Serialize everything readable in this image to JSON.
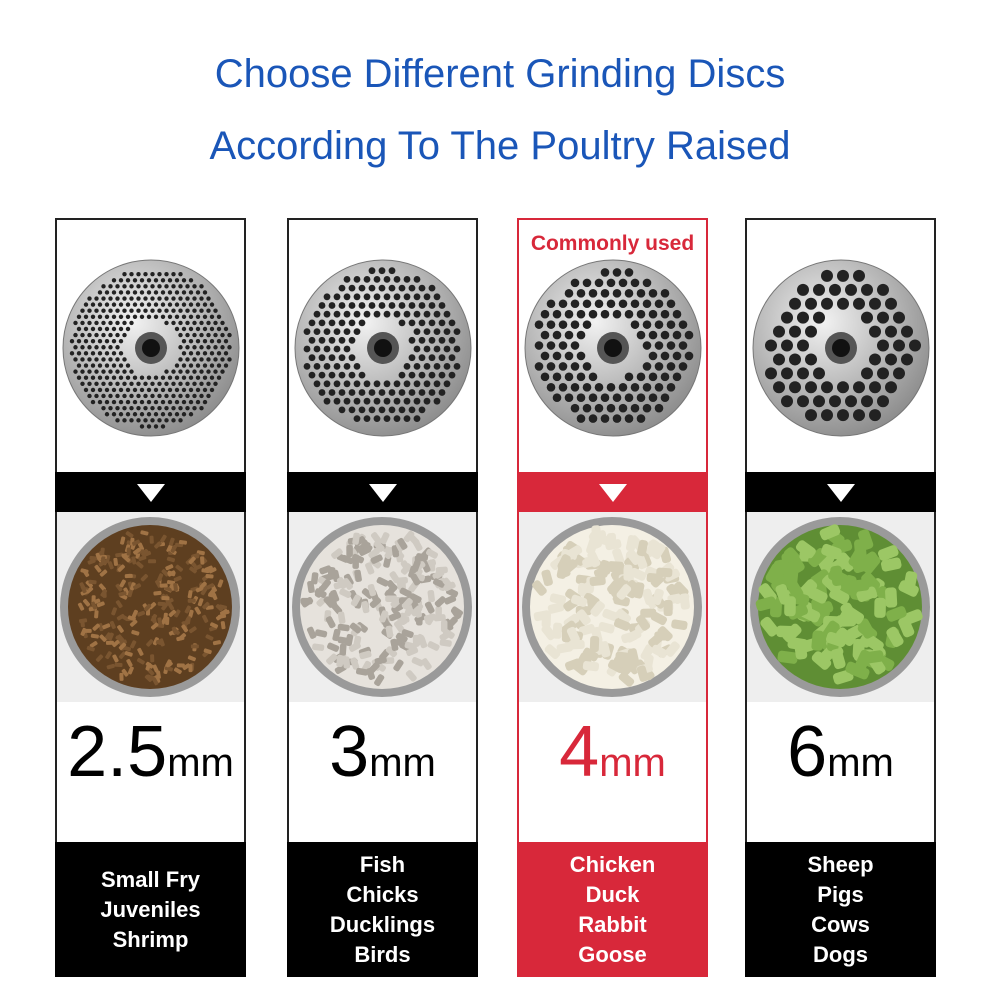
{
  "title": [
    "Choose Different Grinding Discs",
    "According To The Poultry Raised"
  ],
  "columns": [
    {
      "size": "2.5",
      "unit": "mm",
      "animals": [
        "Small Fry",
        "Juveniles",
        "Shrimp"
      ]
    },
    {
      "size": "3",
      "unit": "mm",
      "animals": [
        "Fish",
        "Chicks",
        "Ducklings",
        "Birds"
      ]
    },
    {
      "badge": "Commonly used",
      "size": "4",
      "unit": "mm",
      "animals": [
        "Chicken",
        "Duck",
        "Rabbit",
        "Goose"
      ]
    },
    {
      "size": "6",
      "unit": "mm",
      "animals": [
        "Sheep",
        "Pigs",
        "Cows",
        "Dogs"
      ]
    }
  ]
}
